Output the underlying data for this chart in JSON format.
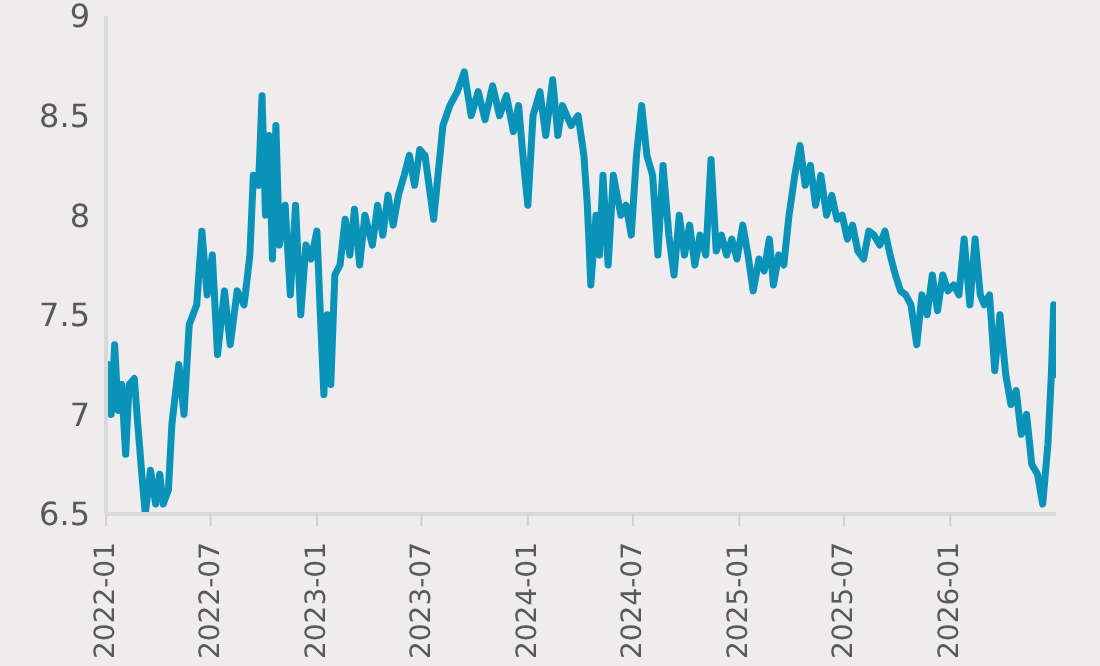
{
  "chart_data": {
    "type": "line",
    "x": [
      "2022-01-04",
      "2022-01-10",
      "2022-01-16",
      "2022-01-22",
      "2022-01-28",
      "2022-02-04",
      "2022-02-10",
      "2022-02-19",
      "2022-02-25",
      "2022-03-04",
      "2022-03-10",
      "2022-03-19",
      "2022-03-28",
      "2022-04-04",
      "2022-04-10",
      "2022-04-19",
      "2022-04-25",
      "2022-05-07",
      "2022-05-16",
      "2022-05-25",
      "2022-06-07",
      "2022-06-16",
      "2022-06-25",
      "2022-07-04",
      "2022-07-13",
      "2022-07-25",
      "2022-08-04",
      "2022-08-16",
      "2022-08-28",
      "2022-09-07",
      "2022-09-13",
      "2022-09-22",
      "2022-09-28",
      "2022-10-04",
      "2022-10-10",
      "2022-10-16",
      "2022-10-22",
      "2022-10-28",
      "2022-11-07",
      "2022-11-16",
      "2022-11-25",
      "2022-12-04",
      "2022-12-13",
      "2022-12-22",
      "2023-01-01",
      "2023-01-07",
      "2023-01-13",
      "2023-01-19",
      "2023-01-25",
      "2023-02-01",
      "2023-02-10",
      "2023-02-19",
      "2023-02-27",
      "2023-03-07",
      "2023-03-16",
      "2023-03-25",
      "2023-04-07",
      "2023-04-16",
      "2023-04-25",
      "2023-05-04",
      "2023-05-13",
      "2023-05-22",
      "2023-06-01",
      "2023-06-10",
      "2023-06-19",
      "2023-06-28",
      "2023-07-07",
      "2023-07-22",
      "2023-08-07",
      "2023-08-19",
      "2023-09-01",
      "2023-09-13",
      "2023-09-25",
      "2023-10-07",
      "2023-10-19",
      "2023-11-01",
      "2023-11-13",
      "2023-11-25",
      "2023-12-07",
      "2023-12-16",
      "2023-12-25",
      "2024-01-01",
      "2024-01-10",
      "2024-01-22",
      "2024-02-01",
      "2024-02-13",
      "2024-02-22",
      "2024-03-01",
      "2024-03-16",
      "2024-03-28",
      "2024-04-07",
      "2024-04-13",
      "2024-04-19",
      "2024-04-28",
      "2024-05-04",
      "2024-05-10",
      "2024-05-19",
      "2024-05-28",
      "2024-06-10",
      "2024-06-19",
      "2024-06-28",
      "2024-07-07",
      "2024-07-16",
      "2024-07-25",
      "2024-08-04",
      "2024-08-13",
      "2024-08-22",
      "2024-09-01",
      "2024-09-10",
      "2024-09-19",
      "2024-09-28",
      "2024-10-07",
      "2024-10-16",
      "2024-10-25",
      "2024-11-04",
      "2024-11-13",
      "2024-11-22",
      "2024-12-01",
      "2024-12-10",
      "2024-12-19",
      "2024-12-28",
      "2025-01-07",
      "2025-01-16",
      "2025-01-25",
      "2025-02-04",
      "2025-02-13",
      "2025-02-22",
      "2025-03-01",
      "2025-03-10",
      "2025-03-19",
      "2025-03-28",
      "2025-04-07",
      "2025-04-16",
      "2025-04-25",
      "2025-05-04",
      "2025-05-13",
      "2025-05-22",
      "2025-06-01",
      "2025-06-10",
      "2025-06-19",
      "2025-06-28",
      "2025-07-07",
      "2025-07-16",
      "2025-07-25",
      "2025-08-04",
      "2025-08-13",
      "2025-08-22",
      "2025-09-01",
      "2025-09-10",
      "2025-09-19",
      "2025-09-28",
      "2025-10-07",
      "2025-10-16",
      "2025-10-25",
      "2025-11-04",
      "2025-11-13",
      "2025-11-22",
      "2025-12-01",
      "2025-12-10",
      "2025-12-19",
      "2025-12-28",
      "2026-01-07",
      "2026-01-16",
      "2026-01-25",
      "2026-02-04",
      "2026-02-13",
      "2026-02-22",
      "2026-03-01",
      "2026-03-10",
      "2026-03-19",
      "2026-03-28",
      "2026-04-07",
      "2026-04-16",
      "2026-04-25",
      "2026-05-04",
      "2026-05-13",
      "2026-05-22",
      "2026-06-01",
      "2026-06-10",
      "2026-06-19",
      "2026-06-25",
      "2026-06-29",
      "2026-07-01"
    ],
    "series": [
      {
        "color": "#0a93b8",
        "values": [
          7.25,
          7.0,
          7.35,
          7.02,
          7.15,
          6.8,
          7.15,
          7.18,
          6.95,
          6.7,
          6.5,
          6.72,
          6.55,
          6.7,
          6.55,
          6.62,
          6.95,
          7.25,
          7.0,
          7.45,
          7.55,
          7.92,
          7.6,
          7.8,
          7.3,
          7.62,
          7.35,
          7.62,
          7.55,
          7.8,
          8.2,
          8.15,
          8.6,
          8.0,
          8.4,
          7.78,
          8.45,
          7.85,
          8.05,
          7.6,
          8.05,
          7.5,
          7.85,
          7.78,
          7.92,
          7.5,
          7.1,
          7.5,
          7.15,
          7.7,
          7.75,
          7.98,
          7.8,
          8.03,
          7.75,
          8.0,
          7.85,
          8.05,
          7.9,
          8.1,
          7.95,
          8.1,
          8.2,
          8.3,
          8.15,
          8.33,
          8.3,
          7.98,
          8.45,
          8.55,
          8.62,
          8.72,
          8.5,
          8.62,
          8.48,
          8.65,
          8.5,
          8.6,
          8.42,
          8.55,
          8.25,
          8.05,
          8.5,
          8.62,
          8.4,
          8.68,
          8.4,
          8.55,
          8.45,
          8.5,
          8.3,
          8.05,
          7.65,
          8.0,
          7.8,
          8.2,
          7.75,
          8.2,
          8.0,
          8.05,
          7.9,
          8.3,
          8.55,
          8.3,
          8.2,
          7.8,
          8.25,
          7.9,
          7.7,
          8.0,
          7.8,
          7.95,
          7.75,
          7.9,
          7.8,
          8.28,
          7.82,
          7.9,
          7.8,
          7.88,
          7.78,
          7.95,
          7.8,
          7.62,
          7.78,
          7.72,
          7.88,
          7.65,
          7.8,
          7.75,
          8.0,
          8.2,
          8.35,
          8.15,
          8.25,
          8.05,
          8.2,
          8.0,
          8.1,
          7.98,
          8.0,
          7.88,
          7.95,
          7.82,
          7.78,
          7.92,
          7.9,
          7.85,
          7.92,
          7.8,
          7.7,
          7.62,
          7.6,
          7.55,
          7.35,
          7.6,
          7.5,
          7.7,
          7.52,
          7.7,
          7.62,
          7.65,
          7.6,
          7.88,
          7.55,
          7.88,
          7.6,
          7.55,
          7.6,
          7.22,
          7.5,
          7.2,
          7.05,
          7.12,
          6.9,
          7.0,
          6.75,
          6.7,
          6.55,
          6.85,
          7.2,
          7.55,
          7.2
        ]
      }
    ],
    "xlim": [
      "2022-01-01",
      "2026-07-03"
    ],
    "xticks": [
      "2022-01",
      "2022-07",
      "2023-01",
      "2023-07",
      "2024-01",
      "2024-07",
      "2025-01",
      "2025-07",
      "2026-01"
    ],
    "ylim": [
      6.5,
      9
    ],
    "yticks": [
      6.5,
      7,
      7.5,
      8,
      8.5,
      9
    ]
  }
}
